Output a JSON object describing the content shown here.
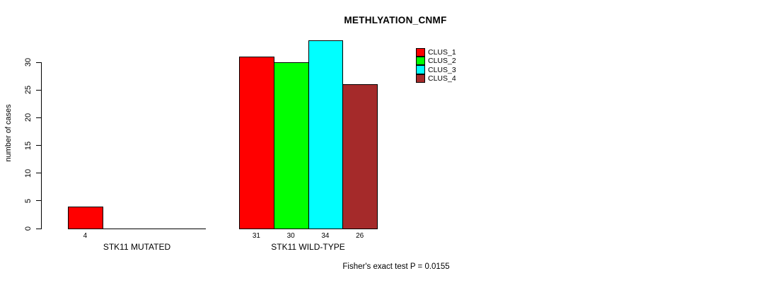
{
  "chart_data": {
    "type": "bar",
    "title": "METHLYATION_CNMF",
    "ylabel": "number of cases",
    "xlabel": "",
    "annotation": "Fisher's exact test P = 0.0155",
    "yticks": [
      0,
      5,
      10,
      15,
      20,
      25,
      30
    ],
    "ylim": [
      0,
      34
    ],
    "grid": false,
    "legend_position": "top-right",
    "legend": [
      {
        "label": "CLUS_1",
        "color": "#FF0000"
      },
      {
        "label": "CLUS_2",
        "color": "#00FF00"
      },
      {
        "label": "CLUS_3",
        "color": "#00FFFF"
      },
      {
        "label": "CLUS_4",
        "color": "#A52A2A"
      }
    ],
    "groups": [
      {
        "label": "STK11 MUTATED",
        "bars": [
          {
            "cluster": "CLUS_1",
            "value": 4,
            "color": "#FF0000"
          }
        ]
      },
      {
        "label": "STK11 WILD-TYPE",
        "bars": [
          {
            "cluster": "CLUS_1",
            "value": 31,
            "color": "#FF0000"
          },
          {
            "cluster": "CLUS_2",
            "value": 30,
            "color": "#00FF00"
          },
          {
            "cluster": "CLUS_3",
            "value": 34,
            "color": "#00FFFF"
          },
          {
            "cluster": "CLUS_4",
            "value": 26,
            "color": "#A52A2A"
          }
        ]
      }
    ]
  }
}
